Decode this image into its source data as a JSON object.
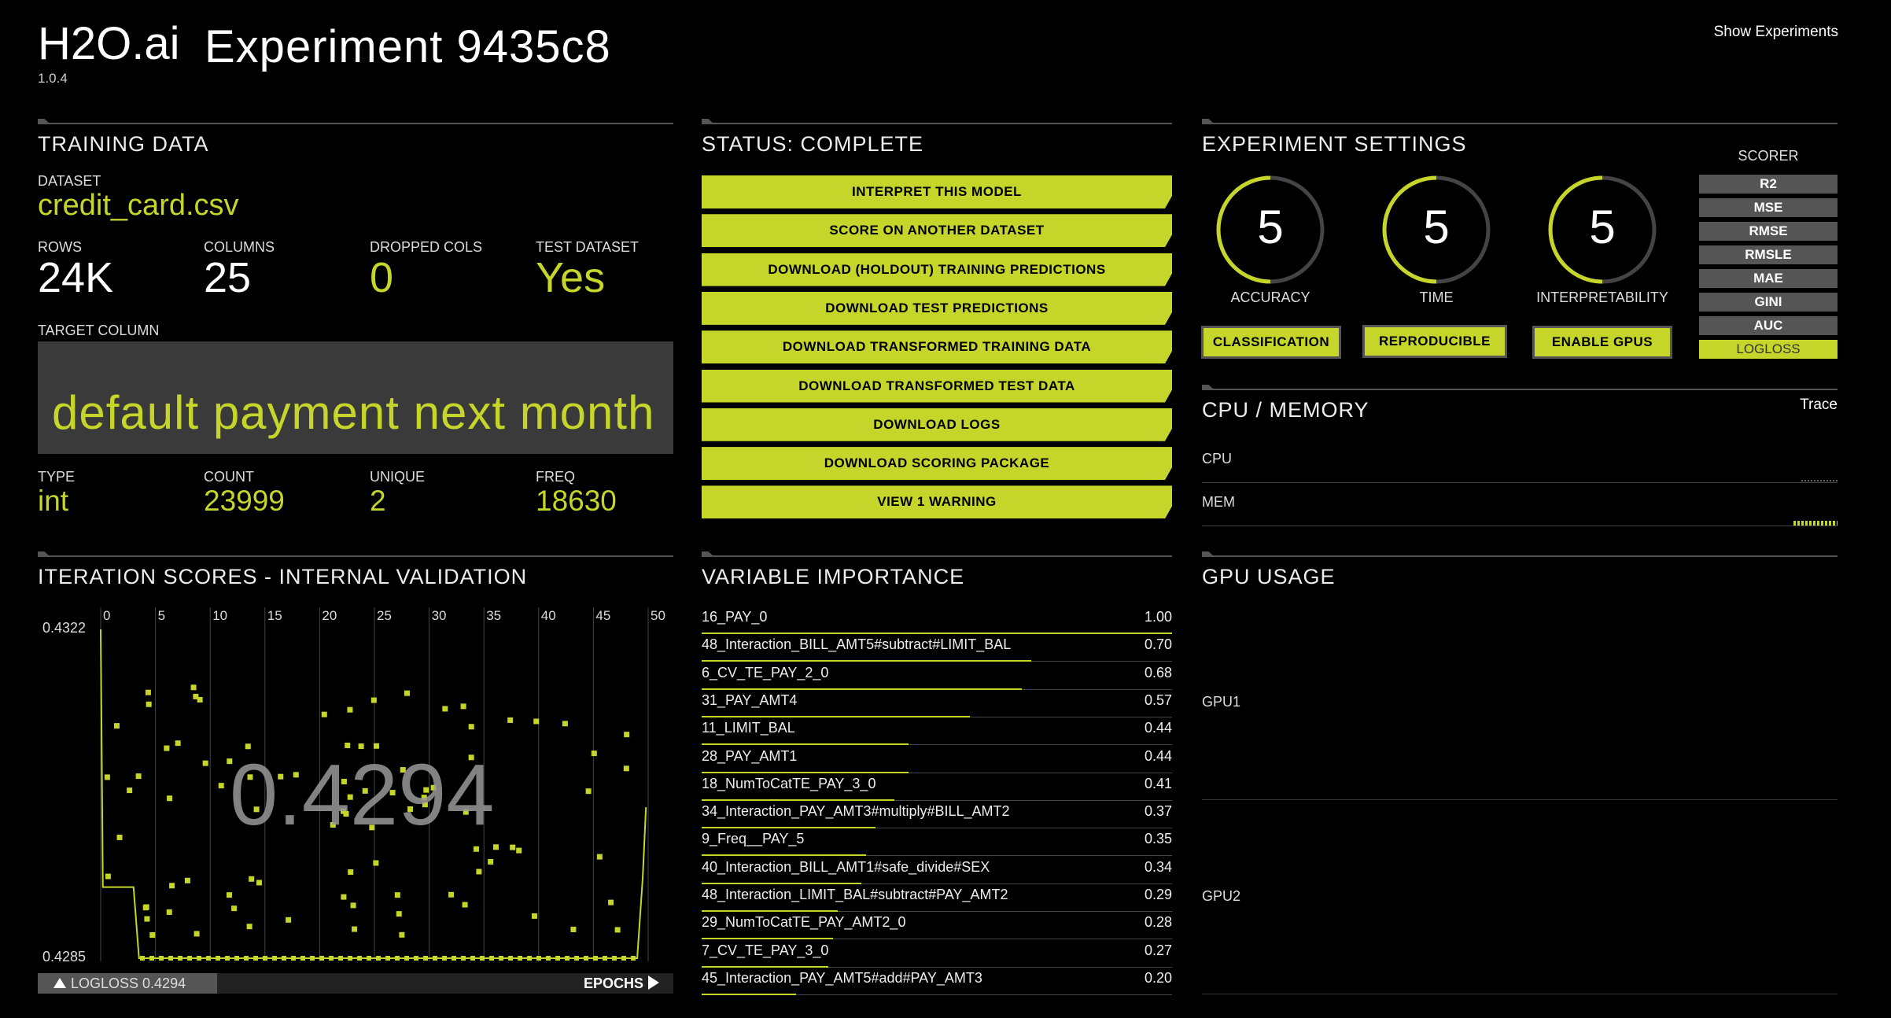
{
  "header": {
    "brand": "H2O.ai",
    "version": "1.0.4",
    "experiment_title": "Experiment 9435c8",
    "show_experiments": "Show Experiments"
  },
  "training_data": {
    "title": "TRAINING DATA",
    "dataset_label": "DATASET",
    "dataset_value": "credit_card.csv",
    "rows_label": "ROWS",
    "rows_value": "24K",
    "columns_label": "COLUMNS",
    "columns_value": "25",
    "dropped_label": "DROPPED COLS",
    "dropped_value": "0",
    "test_label": "TEST DATASET",
    "test_value": "Yes",
    "target_label": "TARGET COLUMN",
    "target_value": "default payment next month",
    "type_label": "TYPE",
    "type_value": "int",
    "count_label": "COUNT",
    "count_value": "23999",
    "unique_label": "UNIQUE",
    "unique_value": "2",
    "freq_label": "FREQ",
    "freq_value": "18630"
  },
  "status": {
    "title": "STATUS: COMPLETE",
    "actions": [
      "INTERPRET THIS MODEL",
      "SCORE ON ANOTHER DATASET",
      "DOWNLOAD (HOLDOUT) TRAINING PREDICTIONS",
      "DOWNLOAD TEST PREDICTIONS",
      "DOWNLOAD TRANSFORMED TRAINING DATA",
      "DOWNLOAD TRANSFORMED TEST DATA",
      "DOWNLOAD LOGS",
      "DOWNLOAD SCORING PACKAGE",
      "VIEW 1 WARNING"
    ]
  },
  "settings": {
    "title": "EXPERIMENT SETTINGS",
    "accuracy_value": "5",
    "accuracy_label": "ACCURACY",
    "time_value": "5",
    "time_label": "TIME",
    "interp_value": "5",
    "interp_label": "INTERPRETABILITY",
    "dial_fraction": 0.5,
    "classification": "CLASSIFICATION",
    "reproducible": "REPRODUCIBLE",
    "enable_gpus": "ENABLE GPUS",
    "scorer_label": "SCORER",
    "scorers": [
      "R2",
      "MSE",
      "RMSE",
      "RMSLE",
      "MAE",
      "GINI",
      "AUC",
      "LOGLOSS"
    ],
    "selected_scorer": "LOGLOSS"
  },
  "cpu_memory": {
    "title": "CPU / MEMORY",
    "trace": "Trace",
    "cpu_label": "CPU",
    "mem_label": "MEM"
  },
  "iteration_scores": {
    "title": "ITERATION SCORES - INTERNAL VALIDATION",
    "current_score": "0.4294",
    "footer_label": "LOGLOSS 0.4294",
    "epochs": "EPOCHS"
  },
  "variable_importance": {
    "title": "VARIABLE IMPORTANCE",
    "items": [
      {
        "name": "16_PAY_0",
        "value": "1.00",
        "fraction": 1.0
      },
      {
        "name": "48_Interaction_BILL_AMT5#subtract#LIMIT_BAL",
        "value": "0.70",
        "fraction": 0.7
      },
      {
        "name": "6_CV_TE_PAY_2_0",
        "value": "0.68",
        "fraction": 0.68
      },
      {
        "name": "31_PAY_AMT4",
        "value": "0.57",
        "fraction": 0.57
      },
      {
        "name": "11_LIMIT_BAL",
        "value": "0.44",
        "fraction": 0.44
      },
      {
        "name": "28_PAY_AMT1",
        "value": "0.44",
        "fraction": 0.44
      },
      {
        "name": "18_NumToCatTE_PAY_3_0",
        "value": "0.41",
        "fraction": 0.41
      },
      {
        "name": "34_Interaction_PAY_AMT3#multiply#BILL_AMT2",
        "value": "0.37",
        "fraction": 0.37
      },
      {
        "name": "9_Freq__PAY_5",
        "value": "0.35",
        "fraction": 0.35
      },
      {
        "name": "40_Interaction_BILL_AMT1#safe_divide#SEX",
        "value": "0.34",
        "fraction": 0.34
      },
      {
        "name": "48_Interaction_LIMIT_BAL#subtract#PAY_AMT2",
        "value": "0.29",
        "fraction": 0.29
      },
      {
        "name": "29_NumToCatTE_PAY_AMT2_0",
        "value": "0.28",
        "fraction": 0.28
      },
      {
        "name": "7_CV_TE_PAY_3_0",
        "value": "0.27",
        "fraction": 0.27
      },
      {
        "name": "45_Interaction_PAY_AMT5#add#PAY_AMT3",
        "value": "0.20",
        "fraction": 0.2
      }
    ]
  },
  "gpu": {
    "title": "GPU USAGE",
    "gpu1": "GPU1",
    "gpu2": "GPU2"
  },
  "chart_data": {
    "type": "scatter",
    "x_ticks": [
      "0",
      "5",
      "10",
      "15",
      "20",
      "25",
      "30",
      "35",
      "40",
      "45",
      "50"
    ],
    "xlim": [
      0,
      50
    ],
    "y_max_label": "0.4322",
    "y_min_label": "0.4285",
    "ylim": [
      0.4285,
      0.4322
    ],
    "best_line": [
      {
        "x": 0,
        "y": 0.4322
      },
      {
        "x": 0.2,
        "y": 0.4293
      },
      {
        "x": 3,
        "y": 0.4293
      },
      {
        "x": 3.5,
        "y": 0.4285
      },
      {
        "x": 49,
        "y": 0.4285
      },
      {
        "x": 49.5,
        "y": 0.4294
      },
      {
        "x": 49.8,
        "y": 0.4302
      }
    ]
  }
}
